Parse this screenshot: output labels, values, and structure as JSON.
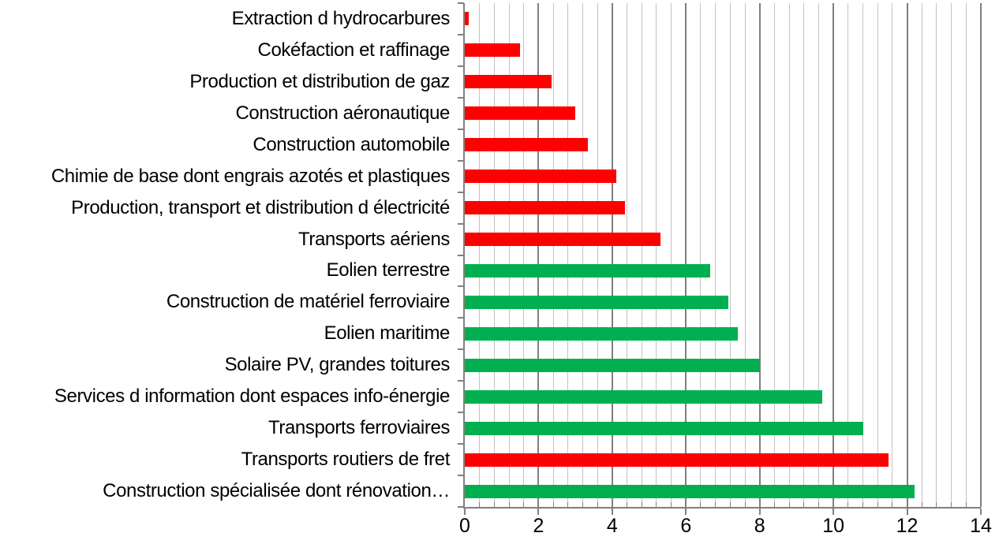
{
  "chart_data": {
    "type": "bar",
    "orientation": "horizontal",
    "title": "",
    "xlabel": "",
    "ylabel": "",
    "legend": "none",
    "grid": "vertical, minor every 0.4, major every 2",
    "xlim": [
      0,
      14
    ],
    "x_major_unit": 2,
    "x_minor_unit": 0.4,
    "x_tick_labels": [
      "0",
      "2",
      "4",
      "6",
      "8",
      "10",
      "12",
      "14"
    ],
    "bars": [
      {
        "label": "Extraction d hydrocarbures",
        "value": 0.1,
        "color": "red"
      },
      {
        "label": "Cokéfaction et raffinage",
        "value": 1.5,
        "color": "red"
      },
      {
        "label": "Production et distribution de gaz",
        "value": 2.35,
        "color": "red"
      },
      {
        "label": "Construction aéronautique",
        "value": 3.0,
        "color": "red"
      },
      {
        "label": "Construction automobile",
        "value": 3.35,
        "color": "red"
      },
      {
        "label": "Chimie de base dont engrais azotés et plastiques",
        "value": 4.1,
        "color": "red"
      },
      {
        "label": "Production, transport et distribution d électricité",
        "value": 4.35,
        "color": "red"
      },
      {
        "label": "Transports aériens",
        "value": 5.3,
        "color": "red"
      },
      {
        "label": "Eolien terrestre",
        "value": 6.65,
        "color": "green"
      },
      {
        "label": "Construction de matériel ferroviaire",
        "value": 7.15,
        "color": "green"
      },
      {
        "label": "Eolien maritime",
        "value": 7.4,
        "color": "green"
      },
      {
        "label": "Solaire PV, grandes toitures",
        "value": 8.0,
        "color": "green"
      },
      {
        "label": "Services d information dont espaces info-énergie",
        "value": 9.7,
        "color": "green"
      },
      {
        "label": "Transports ferroviaires",
        "value": 10.8,
        "color": "green"
      },
      {
        "label": "Transports routiers de fret",
        "value": 11.5,
        "color": "red"
      },
      {
        "label": "Construction spécialisée dont rénovation…",
        "value": 12.2,
        "color": "green"
      }
    ],
    "colors": {
      "red": "#FF0000",
      "green": "#00B050",
      "axis": "#808080",
      "grid_minor": "#C3C3C3",
      "grid_major": "#7F7F7F",
      "text": "#000000"
    }
  }
}
